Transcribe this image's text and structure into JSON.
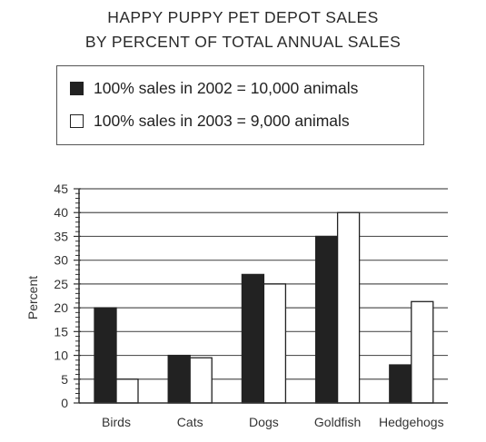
{
  "chart_data": {
    "type": "bar",
    "title": "HAPPY PUPPY PET DEPOT SALES",
    "subtitle": "BY PERCENT OF TOTAL ANNUAL SALES",
    "xlabel": "",
    "ylabel": "Percent",
    "ylim": [
      0,
      45
    ],
    "yticks": [
      0,
      5,
      10,
      15,
      20,
      25,
      30,
      35,
      40,
      45
    ],
    "grid": true,
    "legend_position": "top",
    "categories": [
      "Birds",
      "Cats",
      "Dogs",
      "Goldfish",
      "Hedgehogs"
    ],
    "series": [
      {
        "name": "100% sales in 2002 = 10,000 animals",
        "color": "#222222",
        "values": [
          20,
          10,
          27,
          35,
          8
        ]
      },
      {
        "name": "100% sales in 2003 = 9,000 animals",
        "color": "#ffffff",
        "values": [
          5,
          9.5,
          25,
          40,
          21.3
        ]
      }
    ]
  }
}
